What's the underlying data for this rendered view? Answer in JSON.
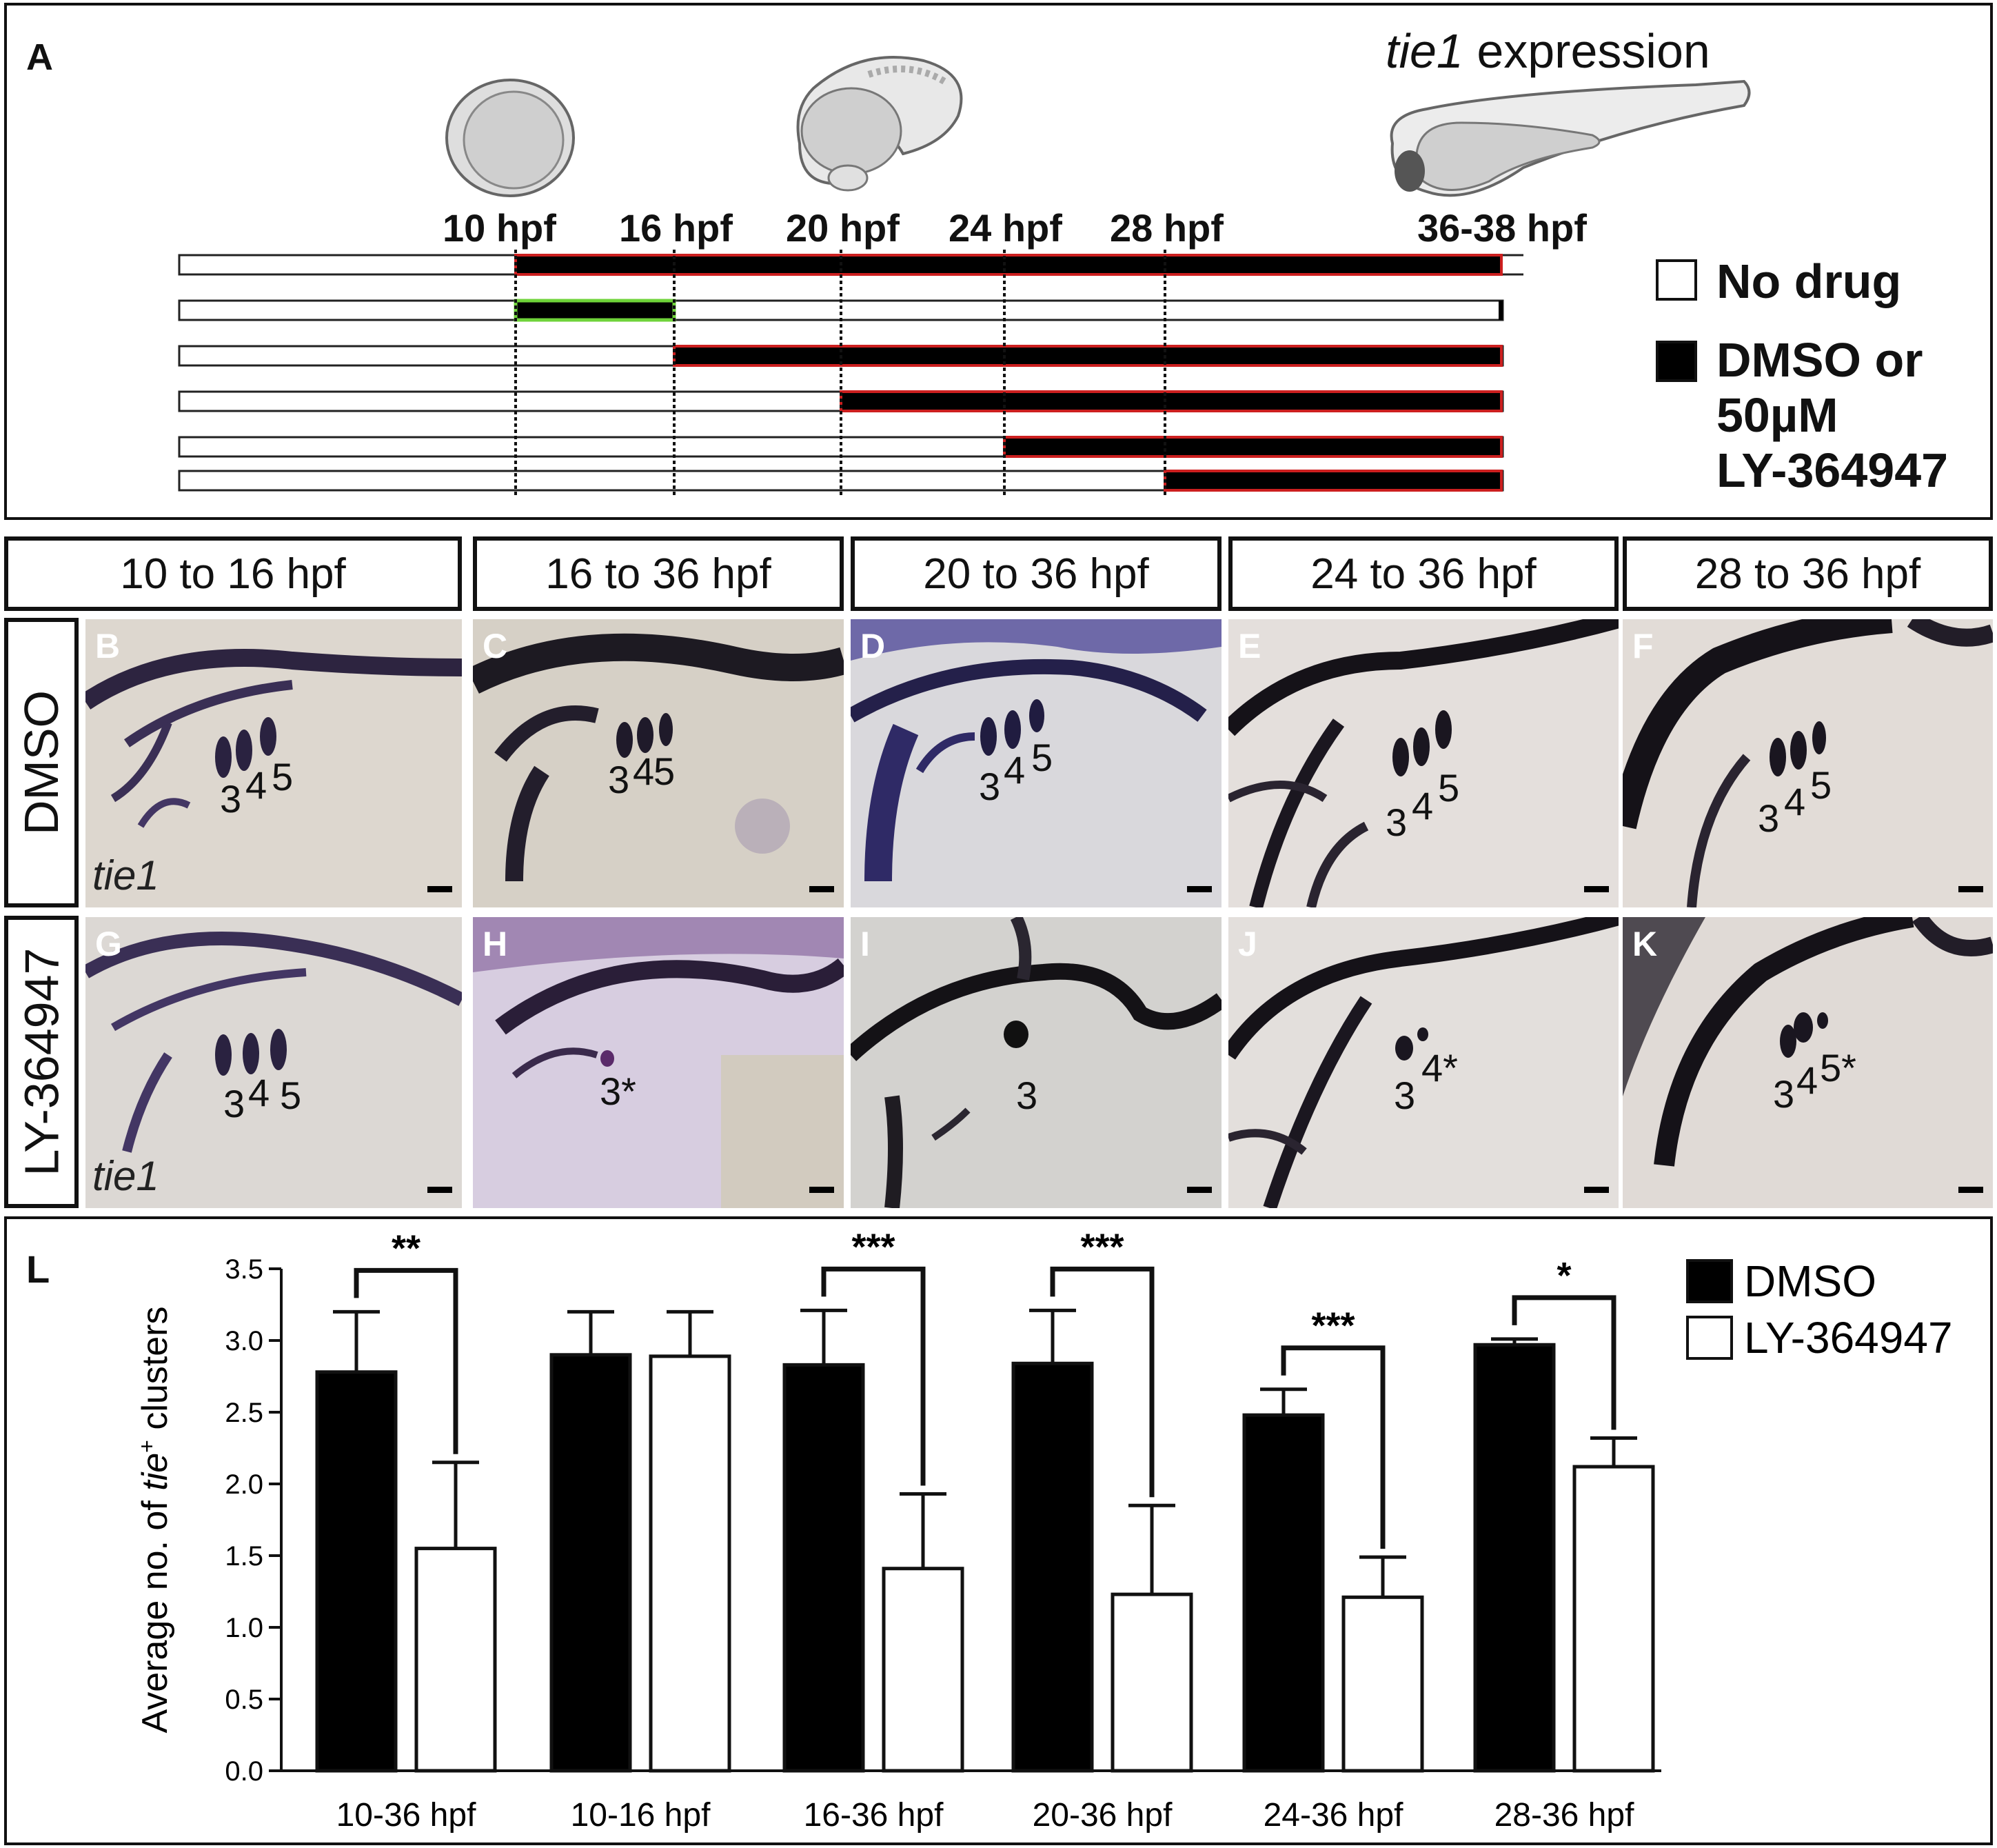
{
  "panelA": {
    "letter": "A",
    "title_gene": "tie1",
    "title_rest": " expression",
    "timepoints": [
      "10 hpf",
      "16 hpf",
      "20 hpf",
      "24 hpf",
      "28 hpf",
      "36-38 hpf"
    ],
    "legend": {
      "no_drug": "No drug",
      "drug_line1": "DMSO or",
      "drug_line2": "50µM",
      "drug_line3": "LY-364947"
    },
    "colors": {
      "treatment_border": "#cc1f1f",
      "washout_border": "#6fd33a"
    }
  },
  "columns": [
    "10 to 16 hpf",
    "16 to 36 hpf",
    "20 to 36 hpf",
    "24 to 36 hpf",
    "28 to 36 hpf"
  ],
  "rows": [
    "DMSO",
    "LY-364947"
  ],
  "micrographs": [
    {
      "letter": "B",
      "gene": "tie1",
      "labels": [
        "3",
        "4",
        "5"
      ]
    },
    {
      "letter": "C",
      "gene": "",
      "labels": [
        "3",
        "4",
        "5"
      ]
    },
    {
      "letter": "D",
      "gene": "",
      "labels": [
        "3",
        "4",
        "5"
      ]
    },
    {
      "letter": "E",
      "gene": "",
      "labels": [
        "3",
        "4",
        "5"
      ]
    },
    {
      "letter": "F",
      "gene": "",
      "labels": [
        "3",
        "4",
        "5"
      ]
    },
    {
      "letter": "G",
      "gene": "tie1",
      "labels": [
        "3",
        "4",
        "5"
      ]
    },
    {
      "letter": "H",
      "gene": "",
      "labels": [
        "3*"
      ]
    },
    {
      "letter": "I",
      "gene": "",
      "labels": [
        "3"
      ]
    },
    {
      "letter": "J",
      "gene": "",
      "labels": [
        "3",
        "4*"
      ]
    },
    {
      "letter": "K",
      "gene": "",
      "labels": [
        "3",
        "4",
        "5*"
      ]
    }
  ],
  "panelL": {
    "letter": "L"
  },
  "chart_data": {
    "type": "bar",
    "ylabel_pre": "Average no. of ",
    "ylabel_gene": "tie",
    "ylabel_sup": "+",
    "ylabel_post": " clusters",
    "ylim": [
      0,
      3.5
    ],
    "yticks": [
      "0.0",
      "0.5",
      "1.0",
      "1.5",
      "2.0",
      "2.5",
      "3.0",
      "3.5"
    ],
    "categories": [
      "10-36 hpf",
      "10-16 hpf",
      "16-36 hpf",
      "20-36 hpf",
      "24-36 hpf",
      "28-36 hpf"
    ],
    "series": [
      {
        "name": "DMSO",
        "color": "#000000",
        "values": [
          2.78,
          2.9,
          2.83,
          2.84,
          2.48,
          2.97
        ],
        "errors": [
          0.42,
          0.3,
          0.38,
          0.37,
          0.18,
          0.04
        ]
      },
      {
        "name": "LY-364947",
        "color": "#ffffff",
        "values": [
          1.55,
          2.89,
          1.41,
          1.23,
          1.21,
          2.12
        ],
        "errors": [
          0.6,
          0.31,
          0.52,
          0.62,
          0.28,
          0.2
        ]
      }
    ],
    "significance": [
      "**",
      "",
      "***",
      "***",
      "***",
      "*"
    ],
    "legend_position": "top-right"
  }
}
